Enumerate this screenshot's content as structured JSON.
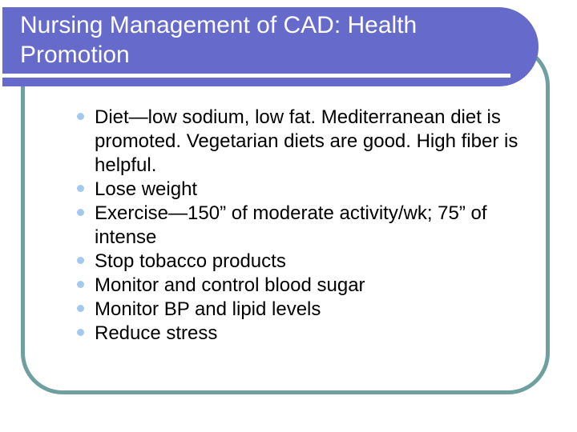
{
  "slide": {
    "title": "Nursing Management of CAD: Health Promotion",
    "bullets": [
      "Diet—low sodium, low fat. Mediterranean diet is promoted. Vegetarian diets are good. High fiber is helpful.",
      "Lose weight",
      "Exercise—150” of moderate activity/wk; 75” of intense",
      "Stop tobacco products",
      "Monitor and control blood sugar",
      "Monitor BP and lipid levels",
      "Reduce stress"
    ]
  },
  "colors": {
    "title_bar": "#666aca",
    "title_text": "#ffffff",
    "title_underline": "#ffffff",
    "content_box_border": "#6f9f9e",
    "bullet_dot": "#a5c8ef",
    "body_text": "#000000",
    "background": "#ffffff"
  }
}
